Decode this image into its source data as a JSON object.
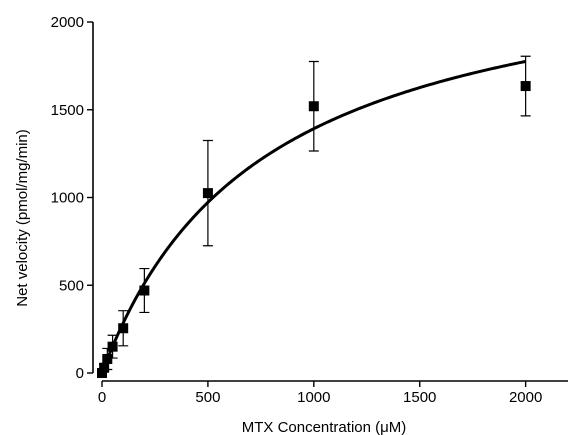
{
  "chart_data": {
    "type": "scatter",
    "title": "",
    "xlabel": "MTX Concentration (μM)",
    "ylabel": "Net velocity (pmol/mg/min)",
    "xlim": [
      0,
      2200
    ],
    "ylim": [
      0,
      2000
    ],
    "x_ticks": [
      0,
      500,
      1000,
      1500,
      2000
    ],
    "y_ticks": [
      0,
      500,
      1000,
      1500,
      2000
    ],
    "grid": false,
    "legend": "none",
    "marker": "square",
    "series": [
      {
        "x": [
          0,
          10,
          25,
          50,
          100,
          200,
          500,
          1000,
          2000
        ],
        "y": [
          0,
          30,
          80,
          150,
          255,
          470,
          1025,
          1520,
          1635
        ],
        "y_error": [
          0,
          20,
          60,
          65,
          100,
          125,
          300,
          255,
          170
        ]
      }
    ],
    "fit": {
      "type": "michaelis-menten",
      "vmax": 2450,
      "km": 760
    }
  }
}
